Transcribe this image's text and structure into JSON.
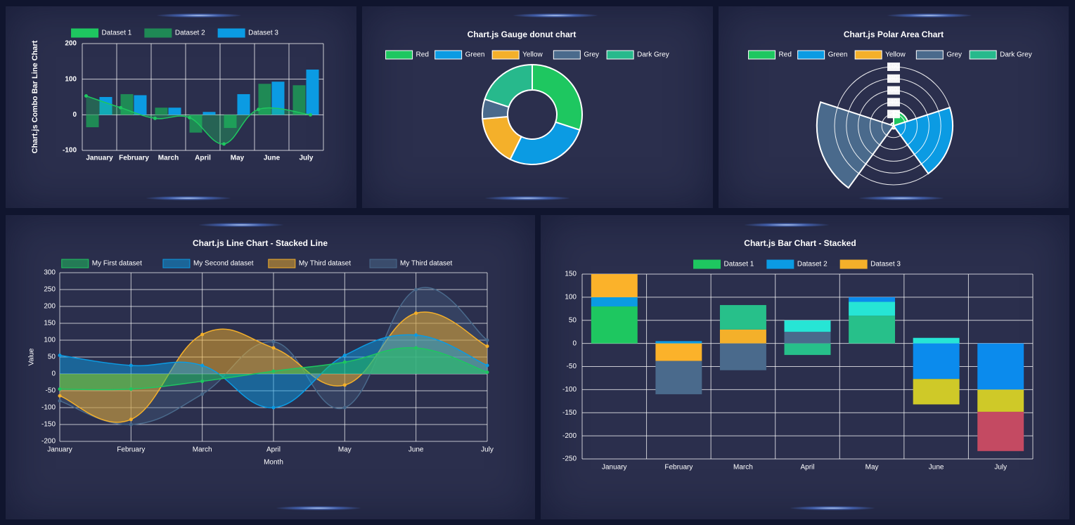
{
  "chart_data": [
    {
      "type": "bar",
      "subtype": "combo-bar-line",
      "title": "Chart.js Combo Bar Line Chart",
      "categories": [
        "January",
        "February",
        "March",
        "April",
        "May",
        "June",
        "July"
      ],
      "ylim": [
        -100,
        200
      ],
      "yticks": [
        -100,
        0,
        100,
        200
      ],
      "grid": true,
      "legend_position": "top",
      "series": [
        {
          "name": "Dataset 1",
          "kind": "line-area",
          "color": "#1ec760",
          "values": [
            53,
            20,
            -10,
            -8,
            -82,
            15,
            0
          ]
        },
        {
          "name": "Dataset 2",
          "kind": "bar",
          "color": "#1f8a55",
          "values": [
            -35,
            58,
            20,
            -50,
            -37,
            87,
            83
          ]
        },
        {
          "name": "Dataset 3",
          "kind": "bar",
          "color": "#0b9be3",
          "values": [
            50,
            55,
            20,
            8,
            58,
            93,
            127
          ]
        }
      ]
    },
    {
      "type": "pie",
      "subtype": "doughnut",
      "title": "Chart.js Gauge donut chart",
      "legend_position": "top",
      "labels": [
        "Red",
        "Green",
        "Yellow",
        "Grey",
        "Dark Grey"
      ],
      "values": [
        33,
        30,
        18,
        7,
        22
      ],
      "colors": [
        "#1ec760",
        "#0b9be3",
        "#f4b02a",
        "#4a6a8c",
        "#27b98c"
      ]
    },
    {
      "type": "pie",
      "subtype": "polarArea",
      "title": "Chart.js Polar Area Chart",
      "legend_position": "top",
      "labels": [
        "Red",
        "Green",
        "Yellow",
        "Grey",
        "Dark Grey"
      ],
      "values": [
        25,
        100,
        5,
        130,
        5
      ],
      "colors": [
        "#1ec760",
        "#0b9be3",
        "#f4b02a",
        "#4a6a8c",
        "#27b98c"
      ],
      "rlim": [
        0,
        100
      ],
      "rticks": [
        20,
        40,
        60,
        80,
        100
      ]
    },
    {
      "type": "area",
      "subtype": "stacked-line",
      "title": "Chart.js Line Chart - Stacked Line",
      "xlabel": "Month",
      "ylabel": "Value",
      "categories": [
        "January",
        "February",
        "March",
        "April",
        "May",
        "June",
        "July"
      ],
      "ylim": [
        -200,
        300
      ],
      "yticks": [
        -200,
        -150,
        -100,
        -50,
        0,
        50,
        100,
        150,
        200,
        250,
        300
      ],
      "grid": true,
      "legend_position": "top",
      "series": [
        {
          "name": "My First dataset",
          "color": "#1ec760",
          "values": [
            -45,
            -45,
            -22,
            8,
            35,
            77,
            5
          ]
        },
        {
          "name": "My Second dataset",
          "color": "#0b9be3",
          "values": [
            55,
            25,
            25,
            -100,
            55,
            115,
            25
          ]
        },
        {
          "name": "My Third dataset",
          "color": "#f4b02a",
          "values": [
            -65,
            -135,
            117,
            77,
            -33,
            180,
            82
          ]
        },
        {
          "name": "My Third dataset",
          "color": "#4a6a8c",
          "values": [
            -80,
            -150,
            -60,
            95,
            -100,
            250,
            100
          ]
        }
      ]
    },
    {
      "type": "bar",
      "subtype": "stacked",
      "title": "Chart.js Bar Chart - Stacked",
      "categories": [
        "January",
        "February",
        "March",
        "April",
        "May",
        "June",
        "July"
      ],
      "ylim": [
        -250,
        150
      ],
      "yticks": [
        -250,
        -200,
        -150,
        -100,
        -50,
        0,
        50,
        100,
        150
      ],
      "grid": true,
      "legend_position": "top",
      "legend": [
        {
          "name": "Dataset 1",
          "color": "#1ec760"
        },
        {
          "name": "Dataset 2",
          "color": "#0b9be3"
        },
        {
          "name": "Dataset 3",
          "color": "#f4b02a"
        }
      ],
      "stacks": [
        [
          {
            "value": 80,
            "color": "#1ec760"
          },
          {
            "value": 20,
            "color": "#0b9be3"
          },
          {
            "value": 50,
            "color": "#fbb22a"
          }
        ],
        [
          {
            "value": 5,
            "color": "#0b9be3"
          },
          {
            "value": -38,
            "color": "#fbb22a"
          },
          {
            "value": -72,
            "color": "#4a6a8c"
          }
        ],
        [
          {
            "value": 30,
            "color": "#f4b02a"
          },
          {
            "value": 53,
            "color": "#27c08a"
          },
          {
            "value": -58,
            "color": "#4a6a8c"
          }
        ],
        [
          {
            "value": 25,
            "color": "#4a6a8c"
          },
          {
            "value": 25,
            "color": "#26e5d5"
          },
          {
            "value": -25,
            "color": "#27c08a"
          }
        ],
        [
          {
            "value": 60,
            "color": "#27c08a"
          },
          {
            "value": 30,
            "color": "#26e5d5"
          },
          {
            "value": 10,
            "color": "#0b8bed"
          }
        ],
        [
          {
            "value": 12,
            "color": "#26e5d5"
          },
          {
            "value": -77,
            "color": "#0b8bed"
          },
          {
            "value": -55,
            "color": "#cfc928"
          }
        ],
        [
          {
            "value": -100,
            "color": "#0b8bed"
          },
          {
            "value": -48,
            "color": "#cfc928"
          },
          {
            "value": -85,
            "color": "#c44a62"
          }
        ]
      ]
    }
  ]
}
